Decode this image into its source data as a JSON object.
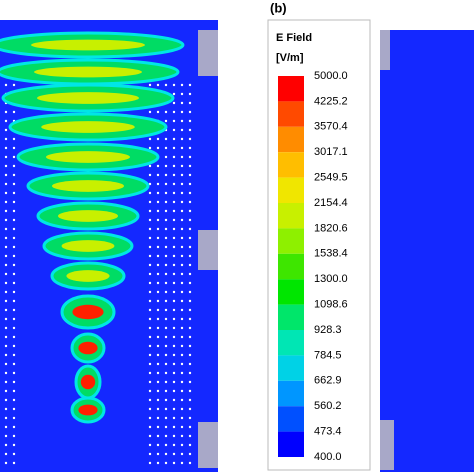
{
  "panel_label": "(b)",
  "legend": {
    "title": "E Field",
    "unit": "[V/m]",
    "levels": [
      "5000.0",
      "4225.2",
      "3570.4",
      "3017.1",
      "2549.5",
      "2154.4",
      "1820.6",
      "1538.4",
      "1300.0",
      "1098.6",
      "928.3",
      "784.5",
      "662.9",
      "560.2",
      "473.4",
      "400.0"
    ],
    "colors": [
      "#ff0000",
      "#ff4a00",
      "#ff8c00",
      "#ffbe00",
      "#f0e600",
      "#c8f000",
      "#8ef000",
      "#3ee600",
      "#00e600",
      "#00e66a",
      "#00e6b4",
      "#00d2e6",
      "#0096ff",
      "#0050ff",
      "#0000ff"
    ]
  }
}
